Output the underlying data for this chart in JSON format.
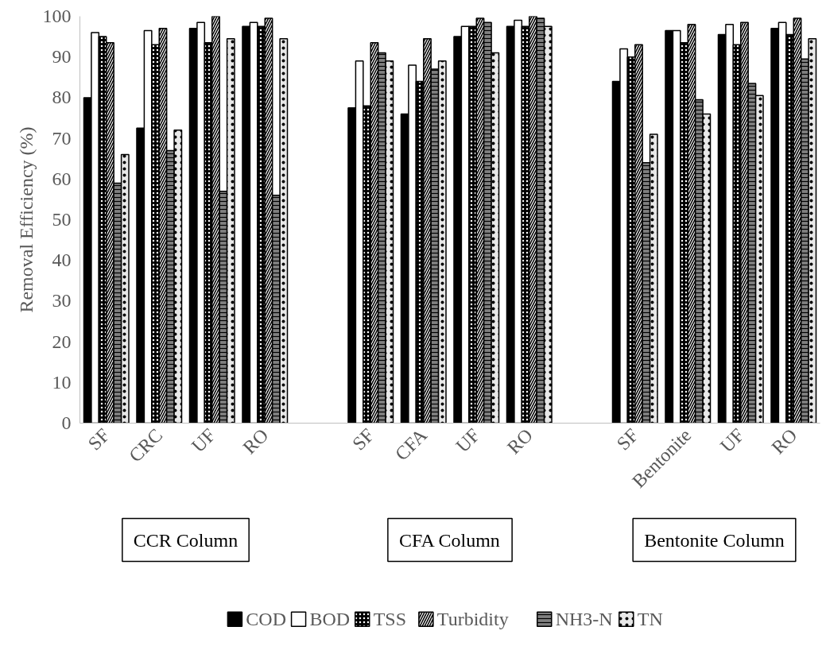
{
  "chart_data": {
    "type": "bar",
    "ylabel": "Removal Efficiency (%)",
    "categories": [
      "SF",
      "CRC",
      "UF",
      "RO",
      null,
      "SF",
      "CFA",
      "UF",
      "RO",
      null,
      "SF",
      "Bentonite",
      "UF",
      "RO"
    ],
    "series": [
      {
        "name": "COD",
        "color": "#000000",
        "values": [
          80,
          72.5,
          97,
          97.5,
          null,
          77.5,
          76,
          95,
          97.5,
          null,
          84,
          96.5,
          95.5,
          97
        ]
      },
      {
        "name": "BOD",
        "color": "#ffffff",
        "values": [
          96,
          96.5,
          98.5,
          98.5,
          null,
          89,
          88,
          97.5,
          99,
          null,
          92,
          96.5,
          98,
          98.5
        ]
      },
      {
        "name": "TSS",
        "color": "#000000",
        "values": [
          95,
          93,
          93.5,
          97.5,
          null,
          78,
          84,
          97.5,
          97.5,
          null,
          90,
          93.5,
          93,
          95.5
        ]
      },
      {
        "name": "Turbidity",
        "color": "#000000",
        "values": [
          93.5,
          97,
          100,
          99.5,
          null,
          93.5,
          94.5,
          99.5,
          100,
          null,
          93,
          98,
          98.5,
          99.5
        ]
      },
      {
        "name": "NH3-N",
        "color": "#808080",
        "values": [
          59,
          67,
          57,
          56,
          null,
          91,
          87,
          98.5,
          99.5,
          null,
          64,
          79.5,
          83.5,
          89.5
        ]
      },
      {
        "name": "TN",
        "color": "#e8e8e8",
        "values": [
          66,
          72,
          94.5,
          94.5,
          null,
          89,
          89,
          91,
          97.5,
          null,
          71,
          76,
          80.5,
          94.5
        ]
      }
    ],
    "ylim": [
      0,
      100
    ],
    "yticks": [
      0,
      10,
      20,
      30,
      40,
      50,
      60,
      70,
      80,
      90,
      100
    ],
    "annotations": [
      "CCR Column",
      "CFA Column",
      "Bentonite Column"
    ],
    "legend": "bottom",
    "grid": false
  }
}
